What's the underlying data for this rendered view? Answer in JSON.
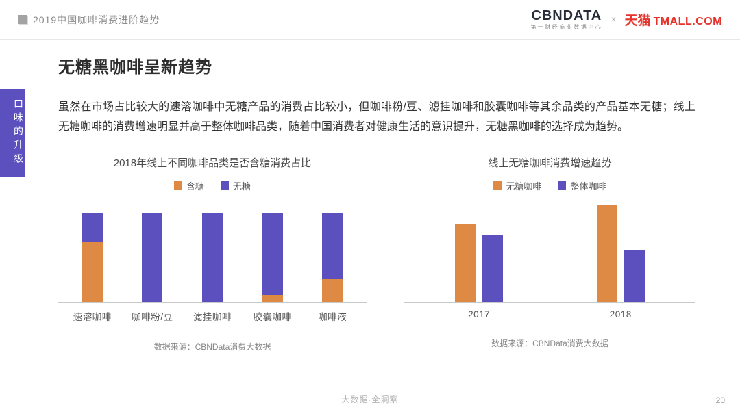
{
  "header": {
    "breadcrumb": "2019中国咖啡消费进阶趋势",
    "logo_cbndata": "CBNDATA",
    "logo_cbndata_sub": "第一财经商业数据中心",
    "logo_separator": "×",
    "logo_tmall_cn": "天猫",
    "logo_tmall_en": "TMALL.COM"
  },
  "side_tab": {
    "label": "口味的升级"
  },
  "main": {
    "title": "无糖黑咖啡呈新趋势",
    "body_text": "虽然在市场占比较大的速溶咖啡中无糖产品的消费占比较小，但咖啡粉/豆、滤挂咖啡和胶囊咖啡等其余品类的产品基本无糖；线上无糖咖啡的消费增速明显并高于整体咖啡品类，随着中国消费者对健康生活的意识提升，无糖黑咖啡的选择成为趋势。"
  },
  "colors": {
    "orange": "#DE8A44",
    "purple": "#5B50BE",
    "tmall_red": "#E5332C"
  },
  "chart_data": [
    {
      "type": "bar",
      "subtype": "stacked",
      "title": "2018年线上不同咖啡品类是否含糖消费占比",
      "categories": [
        "速溶咖啡",
        "咖啡粉/豆",
        "滤挂咖啡",
        "胶囊咖啡",
        "咖啡液"
      ],
      "series": [
        {
          "name": "含糖",
          "color": "#DE8A44",
          "values": [
            68,
            0,
            0,
            8,
            26
          ]
        },
        {
          "name": "无糖",
          "color": "#5B50BE",
          "values": [
            32,
            100,
            100,
            92,
            74
          ]
        }
      ],
      "xlabel": "",
      "ylabel": "",
      "ylim": [
        0,
        100
      ],
      "grid": false,
      "legend_position": "top",
      "source": "数据来源：CBNData消费大数据"
    },
    {
      "type": "bar",
      "subtype": "grouped",
      "title": "线上无糖咖啡消费增速趋势",
      "categories": [
        "2017",
        "2018"
      ],
      "series": [
        {
          "name": "无糖咖啡",
          "color": "#DE8A44",
          "values": [
            80,
            100
          ]
        },
        {
          "name": "整体咖啡",
          "color": "#5B50BE",
          "values": [
            69,
            53
          ]
        }
      ],
      "xlabel": "",
      "ylabel": "",
      "ylim": [
        0,
        105
      ],
      "grid": false,
      "legend_position": "top",
      "source": "数据来源：CBNData消费大数据"
    }
  ],
  "footer": {
    "center": "大数据·全洞察",
    "page_number": "20"
  }
}
